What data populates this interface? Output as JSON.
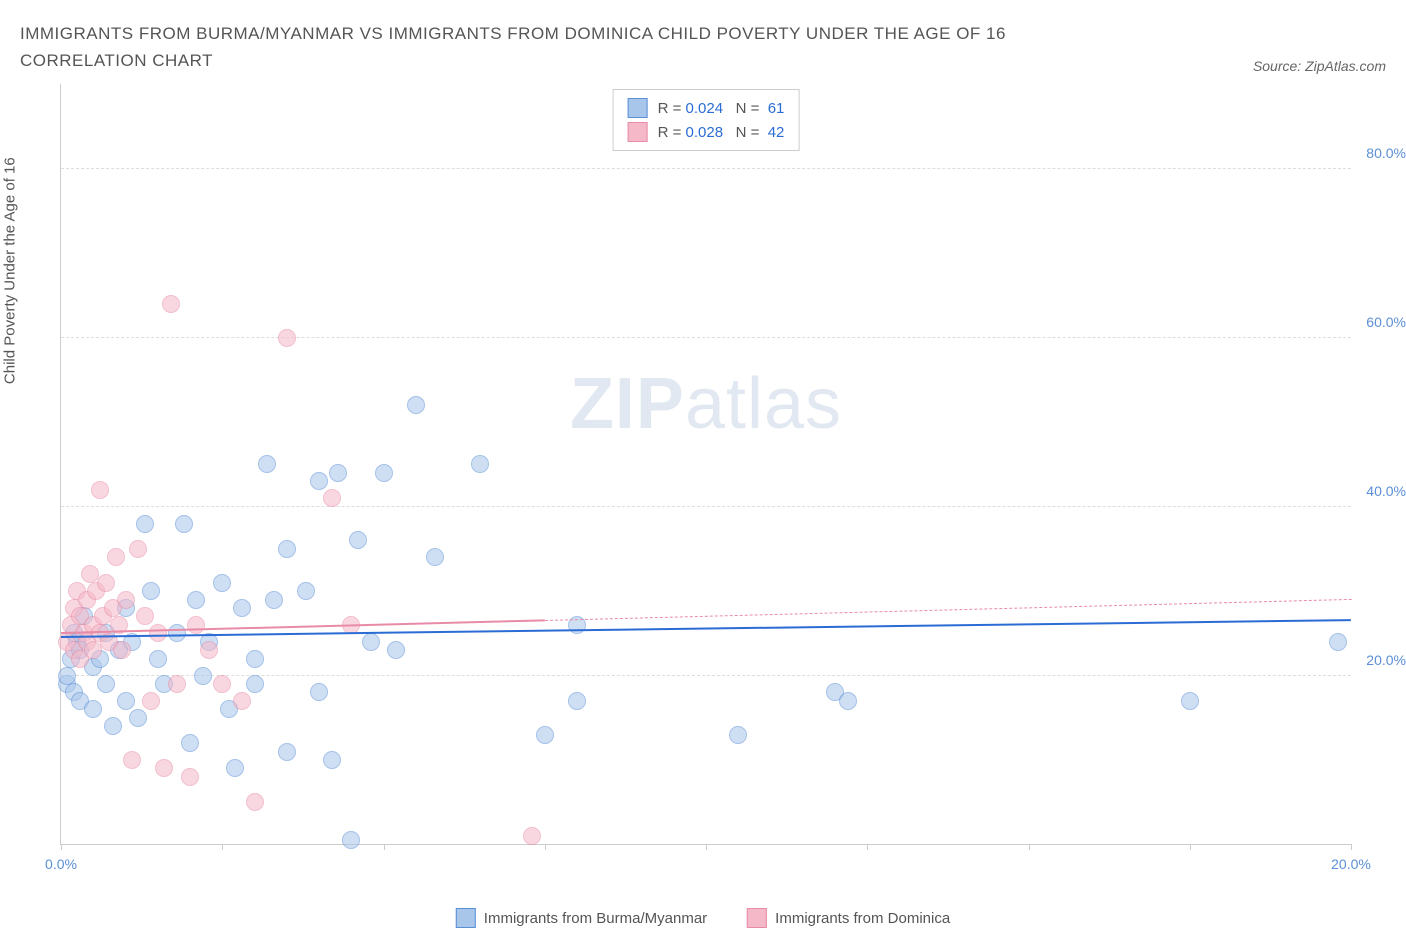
{
  "title": "IMMIGRANTS FROM BURMA/MYANMAR VS IMMIGRANTS FROM DOMINICA CHILD POVERTY UNDER THE AGE OF 16 CORRELATION CHART",
  "source": "Source: ZipAtlas.com",
  "ylabel": "Child Poverty Under the Age of 16",
  "watermark_a": "ZIP",
  "watermark_b": "atlas",
  "chart": {
    "type": "scatter",
    "xlim": [
      0,
      20
    ],
    "ylim": [
      0,
      90
    ],
    "yticks": [
      20,
      40,
      60,
      80
    ],
    "ytick_labels": [
      "20.0%",
      "40.0%",
      "60.0%",
      "80.0%"
    ],
    "xticks": [
      0,
      2.5,
      5,
      7.5,
      10,
      12.5,
      15,
      17.5,
      20
    ],
    "xtick_labels": {
      "0": "0.0%",
      "20": "20.0%"
    },
    "grid_color": "#dddddd",
    "axis_color": "#cccccc",
    "background": "#ffffff",
    "marker_radius": 8,
    "series": [
      {
        "name": "Immigrants from Burma/Myanmar",
        "fill": "#a8c6ea",
        "stroke": "#5b8fd6",
        "fill_opacity": 0.55,
        "R": "0.024",
        "N": "61",
        "trend": {
          "y1": 24.5,
          "y2": 26.5,
          "x1": 0,
          "x2": 20,
          "color": "#2b6cd4",
          "width": 2,
          "dashed_from": null
        },
        "points": [
          [
            0.1,
            19
          ],
          [
            0.1,
            20
          ],
          [
            0.15,
            22
          ],
          [
            0.2,
            18
          ],
          [
            0.2,
            25
          ],
          [
            0.25,
            24
          ],
          [
            0.3,
            23
          ],
          [
            0.3,
            17
          ],
          [
            0.35,
            27
          ],
          [
            0.5,
            16
          ],
          [
            0.5,
            21
          ],
          [
            0.6,
            22
          ],
          [
            0.7,
            19
          ],
          [
            0.7,
            25
          ],
          [
            0.8,
            14
          ],
          [
            0.9,
            23
          ],
          [
            1.0,
            17
          ],
          [
            1.0,
            28
          ],
          [
            1.1,
            24
          ],
          [
            1.2,
            15
          ],
          [
            1.3,
            38
          ],
          [
            1.4,
            30
          ],
          [
            1.5,
            22
          ],
          [
            1.6,
            19
          ],
          [
            1.8,
            25
          ],
          [
            1.9,
            38
          ],
          [
            2.0,
            12
          ],
          [
            2.1,
            29
          ],
          [
            2.2,
            20
          ],
          [
            2.3,
            24
          ],
          [
            2.5,
            31
          ],
          [
            2.6,
            16
          ],
          [
            2.7,
            9
          ],
          [
            2.8,
            28
          ],
          [
            3.0,
            22
          ],
          [
            3.0,
            19
          ],
          [
            3.2,
            45
          ],
          [
            3.3,
            29
          ],
          [
            3.5,
            11
          ],
          [
            3.5,
            35
          ],
          [
            3.8,
            30
          ],
          [
            4.0,
            43
          ],
          [
            4.0,
            18
          ],
          [
            4.2,
            10
          ],
          [
            4.3,
            44
          ],
          [
            4.5,
            0.5
          ],
          [
            4.6,
            36
          ],
          [
            4.8,
            24
          ],
          [
            5.0,
            44
          ],
          [
            5.2,
            23
          ],
          [
            5.5,
            52
          ],
          [
            5.8,
            34
          ],
          [
            6.5,
            45
          ],
          [
            7.5,
            13
          ],
          [
            8.0,
            26
          ],
          [
            8.0,
            17
          ],
          [
            10.5,
            13
          ],
          [
            12.0,
            18
          ],
          [
            12.2,
            17
          ],
          [
            17.5,
            17
          ],
          [
            19.8,
            24
          ]
        ]
      },
      {
        "name": "Immigrants from Dominica",
        "fill": "#f5b8c8",
        "stroke": "#e88ba6",
        "fill_opacity": 0.55,
        "R": "0.028",
        "N": "42",
        "trend": {
          "y1": 25.0,
          "y2": 29.0,
          "x1": 0,
          "x2": 20,
          "color": "#e88ba6",
          "width": 1.5,
          "dashed_from": 7.5
        },
        "points": [
          [
            0.1,
            24
          ],
          [
            0.15,
            26
          ],
          [
            0.2,
            23
          ],
          [
            0.2,
            28
          ],
          [
            0.25,
            30
          ],
          [
            0.3,
            22
          ],
          [
            0.3,
            27
          ],
          [
            0.35,
            25
          ],
          [
            0.4,
            29
          ],
          [
            0.4,
            24
          ],
          [
            0.45,
            32
          ],
          [
            0.5,
            26
          ],
          [
            0.5,
            23
          ],
          [
            0.55,
            30
          ],
          [
            0.6,
            25
          ],
          [
            0.6,
            42
          ],
          [
            0.65,
            27
          ],
          [
            0.7,
            31
          ],
          [
            0.75,
            24
          ],
          [
            0.8,
            28
          ],
          [
            0.85,
            34
          ],
          [
            0.9,
            26
          ],
          [
            0.95,
            23
          ],
          [
            1.0,
            29
          ],
          [
            1.1,
            10
          ],
          [
            1.2,
            35
          ],
          [
            1.3,
            27
          ],
          [
            1.4,
            17
          ],
          [
            1.5,
            25
          ],
          [
            1.6,
            9
          ],
          [
            1.7,
            64
          ],
          [
            1.8,
            19
          ],
          [
            2.0,
            8
          ],
          [
            2.1,
            26
          ],
          [
            2.3,
            23
          ],
          [
            2.5,
            19
          ],
          [
            2.8,
            17
          ],
          [
            3.0,
            5
          ],
          [
            3.5,
            60
          ],
          [
            4.2,
            41
          ],
          [
            4.5,
            26
          ],
          [
            7.3,
            1
          ]
        ]
      }
    ],
    "bottom_legend": [
      {
        "label": "Immigrants from Burma/Myanmar",
        "fill": "#a8c6ea",
        "stroke": "#5b8fd6"
      },
      {
        "label": "Immigrants from Dominica",
        "fill": "#f5b8c8",
        "stroke": "#e88ba6"
      }
    ],
    "legend_box": {
      "rows": [
        {
          "fill": "#a8c6ea",
          "stroke": "#5b8fd6",
          "r_label": "R = ",
          "r_val": "0.024",
          "n_label": "   N = ",
          "n_val": " 61"
        },
        {
          "fill": "#f5b8c8",
          "stroke": "#e88ba6",
          "r_label": "R = ",
          "r_val": "0.028",
          "n_label": "   N = ",
          "n_val": " 42"
        }
      ]
    }
  }
}
